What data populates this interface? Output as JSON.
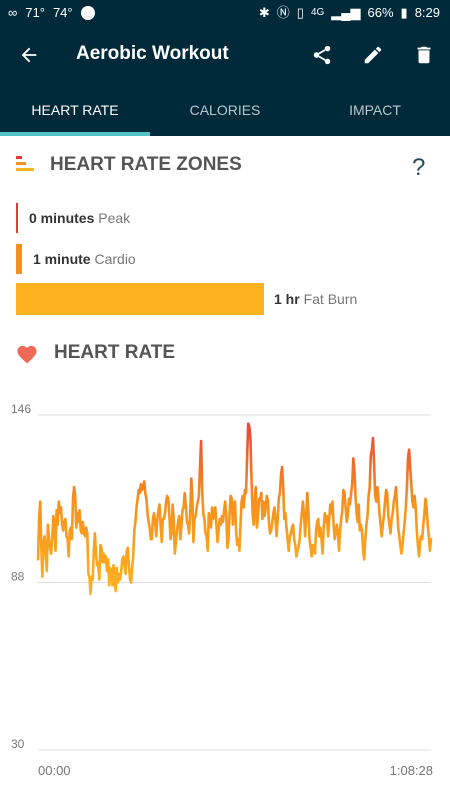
{
  "status": {
    "temp1": "71°",
    "temp2": "74°",
    "signal_text": "4G",
    "battery": "66%",
    "time": "8:29"
  },
  "appbar": {
    "title": "Aerobic Workout"
  },
  "tabs": [
    {
      "label": "HEART RATE",
      "active": true
    },
    {
      "label": "CALORIES",
      "active": false
    },
    {
      "label": "IMPACT",
      "active": false
    }
  ],
  "zones": {
    "title": "HEART RATE ZONES",
    "help": "?",
    "items": [
      {
        "value": "0 minutes",
        "name": "Peak",
        "color": "#e53935"
      },
      {
        "value": "1 minute",
        "name": "Cardio",
        "color": "#f5901e"
      },
      {
        "value": "1 hr",
        "name": "Fat Burn",
        "color": "#ffb21f"
      }
    ]
  },
  "heart_rate": {
    "title": "HEART RATE"
  },
  "chart_data": {
    "type": "line",
    "title": "",
    "xlabel": "",
    "ylabel": "",
    "x_start": "00:00",
    "x_end": "1:08:28",
    "y_ticks": [
      146,
      88,
      30
    ],
    "ylim": [
      30,
      146
    ],
    "grid": true,
    "series": [
      {
        "values": [
          96,
          110,
          116,
          100,
          90,
          102,
          104,
          98,
          92,
          108,
          104,
          100,
          98,
          103,
          111,
          108,
          99,
          113,
          108,
          116,
          112,
          114,
          108,
          106,
          109,
          110,
          104,
          103,
          97,
          106,
          107,
          103,
          117,
          121,
          118,
          107,
          112,
          109,
          113,
          106,
          105,
          109,
          105,
          104,
          107,
          105,
          91,
          90,
          84,
          90,
          89,
          99,
          105,
          98,
          94,
          95,
          89,
          101,
          100,
          95,
          98,
          95,
          97,
          92,
          96,
          87,
          93,
          92,
          87,
          94,
          88,
          85,
          93,
          88,
          91,
          89,
          92,
          96,
          97,
          94,
          91,
          99,
          100,
          94,
          89,
          88,
          93,
          97,
          106,
          109,
          114,
          117,
          120,
          119,
          122,
          120,
          121,
          123,
          119,
          117,
          112,
          109,
          107,
          103,
          103,
          110,
          112,
          109,
          104,
          110,
          113,
          115,
          108,
          102,
          110,
          110,
          112,
          116,
          118,
          117,
          111,
          103,
          105,
          115,
          110,
          98,
          102,
          106,
          109,
          111,
          103,
          107,
          113,
          114,
          119,
          115,
          109,
          108,
          105,
          112,
          124,
          117,
          102,
          110,
          111,
          114,
          116,
          118,
          128,
          137,
          120,
          112,
          110,
          105,
          104,
          99,
          112,
          109,
          107,
          114,
          110,
          113,
          114,
          108,
          102,
          106,
          110,
          108,
          111,
          109,
          113,
          116,
          111,
          100,
          103,
          112,
          118,
          117,
          108,
          112,
          116,
          106,
          101,
          103,
          99,
          108,
          116,
          118,
          114,
          120,
          119,
          131,
          143,
          142,
          138,
          124,
          112,
          108,
          117,
          121,
          107,
          111,
          117,
          117,
          119,
          110,
          116,
          111,
          114,
          118,
          116,
          108,
          105,
          106,
          109,
          112,
          114,
          109,
          104,
          110,
          117,
          119,
          125,
          128,
          121,
          110,
          112,
          107,
          103,
          99,
          104,
          105,
          107,
          108,
          103,
          101,
          97,
          99,
          100,
          103,
          108,
          112,
          116,
          112,
          104,
          111,
          119,
          112,
          103,
          100,
          97,
          101,
          99,
          98,
          106,
          109,
          110,
          104,
          107,
          103,
          98,
          107,
          112,
          109,
          111,
          104,
          110,
          115,
          112,
          116,
          108,
          103,
          106,
          108,
          105,
          99,
          106,
          110,
          113,
          120,
          119,
          114,
          109,
          111,
          117,
          115,
          119,
          122,
          131,
          127,
          118,
          112,
          109,
          115,
          106,
          108,
          106,
          99,
          96,
          103,
          108,
          111,
          118,
          121,
          132,
          134,
          138,
          129,
          118,
          116,
          121,
          117,
          112,
          108,
          104,
          108,
          111,
          116,
          120,
          119,
          111,
          108,
          105,
          110,
          112,
          116,
          118,
          121,
          114,
          107,
          104,
          101,
          98,
          101,
          105,
          109,
          114,
          121,
          131,
          134,
          128,
          122,
          116,
          114,
          118,
          114,
          106,
          101,
          97,
          102,
          104,
          103,
          108,
          112,
          117,
          114,
          108,
          104,
          99,
          103
        ]
      }
    ]
  }
}
